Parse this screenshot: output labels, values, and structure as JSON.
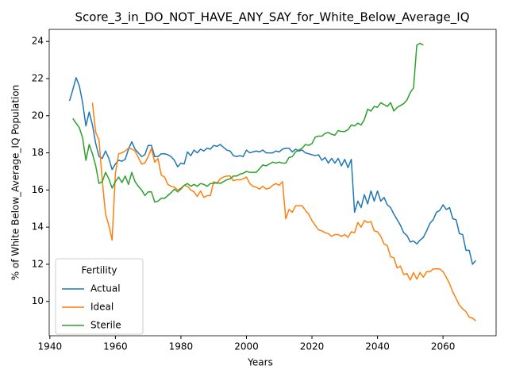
{
  "chart_data": {
    "type": "line",
    "title": "Score_3_in_DO_NOT_HAVE_ANY_SAY_for_White_Below_Average_IQ",
    "xlabel": "Years",
    "ylabel": "% of White Below_Average_IQ Population",
    "legend_title": "Fertility",
    "legend": "lower left",
    "xlim": [
      1939.8,
      2076.2
    ],
    "ylim": [
      8.15,
      24.65
    ],
    "xticks": [
      1940,
      1960,
      1980,
      2000,
      2020,
      2040,
      2060
    ],
    "yticks": [
      10,
      12,
      14,
      16,
      18,
      20,
      22,
      24
    ],
    "series": [
      {
        "name": "Actual",
        "color": "#1f77b4",
        "x": [
          1946,
          1947,
          1948,
          1949,
          1950,
          1951,
          1952,
          1953,
          1954,
          1955,
          1956,
          1957,
          1958,
          1959,
          1960,
          1961,
          1962,
          1963,
          1964,
          1965,
          1966,
          1967,
          1968,
          1969,
          1970,
          1971,
          1972,
          1973,
          1974,
          1975,
          1976,
          1977,
          1978,
          1979,
          1980,
          1981,
          1982,
          1983,
          1984,
          1985,
          1986,
          1987,
          1988,
          1989,
          1990,
          1991,
          1992,
          1993,
          1994,
          1995,
          1996,
          1997,
          1998,
          1999,
          2000,
          2001,
          2002,
          2003,
          2004,
          2005,
          2006,
          2007,
          2008,
          2009,
          2010,
          2011,
          2012,
          2013,
          2014,
          2015,
          2016,
          2017,
          2018,
          2019,
          2020,
          2021,
          2022,
          2023,
          2024,
          2025,
          2026,
          2027,
          2028,
          2029,
          2030,
          2031,
          2032,
          2033,
          2034,
          2035,
          2036,
          2037,
          2038,
          2039,
          2040,
          2041,
          2042,
          2043,
          2044,
          2045,
          2046,
          2047,
          2048,
          2049,
          2050,
          2051,
          2052,
          2053,
          2054,
          2055,
          2056,
          2057,
          2058,
          2059,
          2060,
          2061,
          2062,
          2063,
          2064,
          2065,
          2066,
          2067,
          2068,
          2069,
          2070
        ],
        "values": [
          20.8,
          21.4,
          22.05,
          21.6,
          20.7,
          19.45,
          20.2,
          19.5,
          18.5,
          17.8,
          17.7,
          18.1,
          17.7,
          17.1,
          17.4,
          17.6,
          17.55,
          17.65,
          18.2,
          18.6,
          18.2,
          18.0,
          17.8,
          17.9,
          18.4,
          18.4,
          17.8,
          17.8,
          17.95,
          17.95,
          17.9,
          17.8,
          17.6,
          17.25,
          17.45,
          17.4,
          18.05,
          17.85,
          18.15,
          18.0,
          18.2,
          18.1,
          18.25,
          18.2,
          18.4,
          18.35,
          18.45,
          18.3,
          18.15,
          18.1,
          17.85,
          17.8,
          17.85,
          17.8,
          18.15,
          18.0,
          18.05,
          18.1,
          18.05,
          18.15,
          18.0,
          18.0,
          18.0,
          18.1,
          18.05,
          18.2,
          18.25,
          18.25,
          18.05,
          18.2,
          18.1,
          18.15,
          18.0,
          17.95,
          17.9,
          17.85,
          17.9,
          17.6,
          17.75,
          17.45,
          17.7,
          17.45,
          17.7,
          17.3,
          17.65,
          17.2,
          17.65,
          14.8,
          15.4,
          15.05,
          15.75,
          15.25,
          15.95,
          15.4,
          15.95,
          15.4,
          15.6,
          15.2,
          15.05,
          14.7,
          14.4,
          14.1,
          13.7,
          13.55,
          13.2,
          13.25,
          13.1,
          13.3,
          13.45,
          13.8,
          14.2,
          14.4,
          14.8,
          14.9,
          15.2,
          14.95,
          15.05,
          14.45,
          14.4,
          13.65,
          13.6,
          12.75,
          12.75,
          12.0,
          12.2
        ]
      },
      {
        "name": "Ideal",
        "color": "#ff7f0e",
        "x": [
          1953,
          1954,
          1955,
          1956,
          1957,
          1958,
          1959,
          1960,
          1961,
          1962,
          1963,
          1964,
          1965,
          1966,
          1967,
          1968,
          1969,
          1970,
          1971,
          1972,
          1973,
          1974,
          1975,
          1976,
          1977,
          1978,
          1979,
          1980,
          1981,
          1982,
          1983,
          1984,
          1985,
          1986,
          1987,
          1988,
          1989,
          1990,
          1991,
          1992,
          1993,
          1994,
          1995,
          1996,
          1997,
          1998,
          1999,
          2000,
          2001,
          2002,
          2003,
          2004,
          2005,
          2006,
          2007,
          2008,
          2009,
          2010,
          2011,
          2012,
          2013,
          2014,
          2015,
          2016,
          2017,
          2018,
          2019,
          2020,
          2021,
          2022,
          2023,
          2024,
          2025,
          2026,
          2027,
          2028,
          2029,
          2030,
          2031,
          2032,
          2033,
          2034,
          2035,
          2036,
          2037,
          2038,
          2039,
          2040,
          2041,
          2042,
          2043,
          2044,
          2045,
          2046,
          2047,
          2048,
          2049,
          2050,
          2051,
          2052,
          2053,
          2054,
          2055,
          2056,
          2057,
          2058,
          2059,
          2060,
          2061,
          2062,
          2063,
          2064,
          2065,
          2066,
          2067,
          2068,
          2069,
          2070
        ],
        "values": [
          20.7,
          19.1,
          18.7,
          16.5,
          14.7,
          14.1,
          13.3,
          16.9,
          17.95,
          18.0,
          18.1,
          18.25,
          18.2,
          18.1,
          17.75,
          17.4,
          17.45,
          17.8,
          18.25,
          17.5,
          17.7,
          16.8,
          16.7,
          16.3,
          16.2,
          16.15,
          16.0,
          16.1,
          16.25,
          16.2,
          16.0,
          15.9,
          15.65,
          15.95,
          15.6,
          15.7,
          15.7,
          16.45,
          16.35,
          16.6,
          16.7,
          16.75,
          16.75,
          16.5,
          16.55,
          16.55,
          16.6,
          16.7,
          16.35,
          16.2,
          16.15,
          16.05,
          16.2,
          16.05,
          16.1,
          16.25,
          16.35,
          16.25,
          16.45,
          14.45,
          14.95,
          14.8,
          15.15,
          15.15,
          15.15,
          14.9,
          14.7,
          14.35,
          14.1,
          13.85,
          13.8,
          13.7,
          13.65,
          13.5,
          13.6,
          13.6,
          13.5,
          13.6,
          13.45,
          13.75,
          13.7,
          14.25,
          14.0,
          14.35,
          14.25,
          14.3,
          13.8,
          13.75,
          13.5,
          13.1,
          13.0,
          12.4,
          12.35,
          11.8,
          11.9,
          11.45,
          11.5,
          11.15,
          11.55,
          11.2,
          11.55,
          11.3,
          11.6,
          11.6,
          11.75,
          11.75,
          11.75,
          11.6,
          11.3,
          10.95,
          10.5,
          10.15,
          9.8,
          9.6,
          9.45,
          9.15,
          9.1,
          8.95
        ]
      },
      {
        "name": "Sterile",
        "color": "#2ca02c",
        "x": [
          1947,
          1948,
          1949,
          1950,
          1951,
          1952,
          1953,
          1954,
          1955,
          1956,
          1957,
          1958,
          1959,
          1960,
          1961,
          1962,
          1963,
          1964,
          1965,
          1966,
          1967,
          1968,
          1969,
          1970,
          1971,
          1972,
          1973,
          1974,
          1975,
          1976,
          1977,
          1978,
          1979,
          1980,
          1981,
          1982,
          1983,
          1984,
          1985,
          1986,
          1987,
          1988,
          1989,
          1990,
          1991,
          1992,
          1993,
          1994,
          1995,
          1996,
          1997,
          1998,
          1999,
          2000,
          2001,
          2002,
          2003,
          2004,
          2005,
          2006,
          2007,
          2008,
          2009,
          2010,
          2011,
          2012,
          2013,
          2014,
          2015,
          2016,
          2017,
          2018,
          2019,
          2020,
          2021,
          2022,
          2023,
          2024,
          2025,
          2026,
          2027,
          2028,
          2029,
          2030,
          2031,
          2032,
          2033,
          2034,
          2035,
          2036,
          2037,
          2038,
          2039,
          2040,
          2041,
          2042,
          2043,
          2044,
          2045,
          2046,
          2047,
          2048,
          2049,
          2050,
          2051,
          2052,
          2053,
          2054
        ],
        "values": [
          19.85,
          19.6,
          19.35,
          18.8,
          17.6,
          18.45,
          17.95,
          17.3,
          16.35,
          16.45,
          16.95,
          16.6,
          16.1,
          16.45,
          16.7,
          16.4,
          16.75,
          16.3,
          16.95,
          16.45,
          16.2,
          16.0,
          15.7,
          15.9,
          15.9,
          15.35,
          15.4,
          15.55,
          15.55,
          15.7,
          15.85,
          16.05,
          15.9,
          16.05,
          16.25,
          16.35,
          16.2,
          16.3,
          16.2,
          16.35,
          16.3,
          16.2,
          16.35,
          16.35,
          16.4,
          16.35,
          16.45,
          16.55,
          16.6,
          16.75,
          16.75,
          16.85,
          16.9,
          17.0,
          16.95,
          16.95,
          16.95,
          17.15,
          17.35,
          17.3,
          17.4,
          17.5,
          17.45,
          17.5,
          17.45,
          17.45,
          17.75,
          17.8,
          18.05,
          18.15,
          18.25,
          18.45,
          18.4,
          18.5,
          18.85,
          18.9,
          18.9,
          19.05,
          19.1,
          19.0,
          18.95,
          19.2,
          19.15,
          19.15,
          19.25,
          19.5,
          19.45,
          19.6,
          19.5,
          19.8,
          20.35,
          20.25,
          20.5,
          20.45,
          20.7,
          20.6,
          20.5,
          20.7,
          20.25,
          20.45,
          20.55,
          20.65,
          20.85,
          21.25,
          21.5,
          23.8,
          23.9,
          23.8
        ]
      }
    ]
  }
}
